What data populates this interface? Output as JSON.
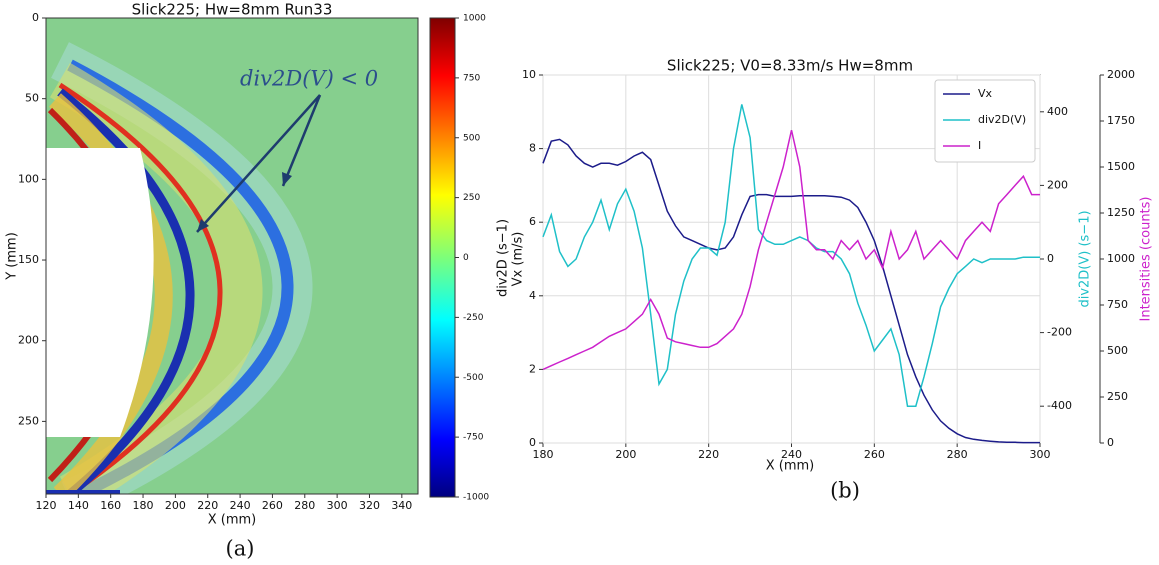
{
  "chart_data": [
    {
      "type": "heatmap",
      "title": "Slick225; Hw=8mm Run33",
      "xlabel": "X (mm)",
      "ylabel": "Y (mm)",
      "xlim": [
        120,
        350
      ],
      "xticks": [
        120,
        140,
        160,
        180,
        200,
        220,
        240,
        260,
        280,
        300,
        320,
        340
      ],
      "ylim": [
        0,
        295
      ],
      "yticks": [
        0,
        50,
        100,
        150,
        200,
        250
      ],
      "colorbar": {
        "label": "div2D (s−1)",
        "lim": [
          -1000,
          1000
        ],
        "ticks": [
          -1000,
          -750,
          -500,
          -250,
          0,
          250,
          500,
          750,
          1000
        ]
      },
      "annotation": "div2D(V) < 0",
      "caption": "(a)"
    },
    {
      "type": "line",
      "title": "Slick225; V0=8.33m/s Hw=8mm",
      "xlabel": "X (mm)",
      "ylabel": "Vx (m/s)",
      "y2label": "div2D(V) (s−1)",
      "y3label": "Intensities (counts)",
      "caption": "(b)",
      "grid": true,
      "legend": "upper right",
      "xlim": [
        180,
        300
      ],
      "xticks": [
        180,
        200,
        220,
        240,
        260,
        280,
        300
      ],
      "ylim": [
        0,
        10
      ],
      "yticks": [
        0,
        2,
        4,
        6,
        8,
        10
      ],
      "y2lim": [
        -500,
        500
      ],
      "y2ticks": [
        -400,
        -200,
        0,
        200,
        400
      ],
      "y3lim": [
        0,
        2000
      ],
      "y3ticks": [
        0,
        250,
        500,
        750,
        1000,
        1250,
        1500,
        1750,
        2000
      ],
      "x": [
        180,
        182,
        184,
        186,
        188,
        190,
        192,
        194,
        196,
        198,
        200,
        202,
        204,
        206,
        208,
        210,
        212,
        214,
        216,
        218,
        220,
        222,
        224,
        226,
        228,
        230,
        232,
        234,
        236,
        238,
        240,
        242,
        244,
        246,
        248,
        250,
        252,
        254,
        256,
        258,
        260,
        262,
        264,
        266,
        268,
        270,
        272,
        274,
        276,
        278,
        280,
        282,
        284,
        286,
        288,
        290,
        292,
        294,
        296,
        298,
        300
      ],
      "series": [
        {
          "name": "Vx",
          "color": "#1c1c8a",
          "axis": "y",
          "values": [
            7.6,
            8.2,
            8.25,
            8.1,
            7.8,
            7.6,
            7.5,
            7.6,
            7.6,
            7.55,
            7.65,
            7.8,
            7.9,
            7.7,
            7.0,
            6.3,
            5.9,
            5.6,
            5.5,
            5.4,
            5.3,
            5.25,
            5.3,
            5.6,
            6.2,
            6.7,
            6.75,
            6.75,
            6.7,
            6.7,
            6.7,
            6.72,
            6.72,
            6.72,
            6.72,
            6.7,
            6.68,
            6.6,
            6.4,
            6.0,
            5.5,
            4.8,
            4.0,
            3.2,
            2.4,
            1.8,
            1.3,
            0.9,
            0.6,
            0.4,
            0.25,
            0.15,
            0.1,
            0.07,
            0.05,
            0.03,
            0.02,
            0.02,
            0.01,
            0.01,
            0.01
          ]
        },
        {
          "name": "div2D(V)",
          "color": "#1fc0c8",
          "axis": "y2",
          "values": [
            60,
            120,
            20,
            -20,
            0,
            60,
            100,
            160,
            80,
            150,
            190,
            130,
            30,
            -150,
            -340,
            -300,
            -150,
            -60,
            0,
            30,
            30,
            10,
            100,
            300,
            420,
            330,
            80,
            50,
            40,
            40,
            50,
            60,
            50,
            30,
            20,
            20,
            0,
            -40,
            -120,
            -180,
            -250,
            -220,
            -190,
            -260,
            -400,
            -400,
            -320,
            -230,
            -130,
            -80,
            -40,
            -20,
            0,
            -10,
            0,
            0,
            0,
            0,
            5,
            5,
            5
          ]
        },
        {
          "name": "I",
          "color": "#cc22cc",
          "axis": "y3",
          "values": [
            400,
            420,
            440,
            460,
            480,
            500,
            520,
            550,
            580,
            600,
            620,
            660,
            700,
            780,
            700,
            570,
            550,
            540,
            530,
            520,
            520,
            540,
            580,
            620,
            700,
            850,
            1050,
            1200,
            1350,
            1500,
            1700,
            1500,
            1100,
            1050,
            1050,
            1000,
            1100,
            1050,
            1100,
            1000,
            1050,
            950,
            1150,
            1000,
            1050,
            1150,
            1000,
            1050,
            1100,
            1050,
            1000,
            1100,
            1150,
            1200,
            1150,
            1300,
            1350,
            1400,
            1450,
            1350,
            1350
          ]
        }
      ]
    }
  ]
}
